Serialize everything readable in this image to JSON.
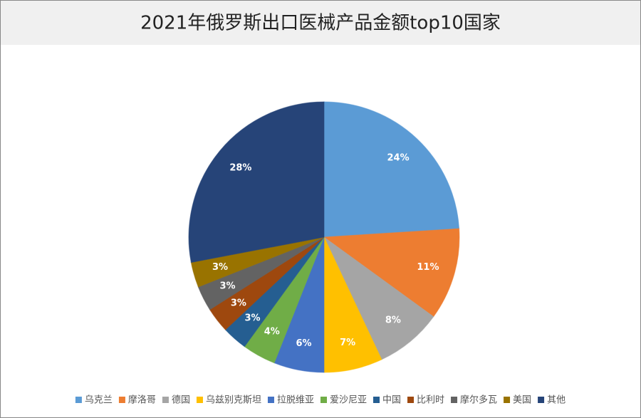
{
  "chart_data": {
    "type": "pie",
    "title": "2021年俄罗斯出口医械产品金额top10国家",
    "categories": [
      "乌克兰",
      "摩洛哥",
      "德国",
      "乌兹别克斯坦",
      "拉脱维亚",
      "爱沙尼亚",
      "中国",
      "比利时",
      "摩尔多瓦",
      "美国",
      "其他"
    ],
    "values": [
      24,
      11,
      8,
      7,
      6,
      4,
      3,
      3,
      3,
      3,
      28
    ],
    "value_labels": [
      "24%",
      "11%",
      "8%",
      "7%",
      "6%",
      "4%",
      "3%",
      "3%",
      "3%",
      "3%",
      "28%"
    ],
    "colors": [
      "#5b9bd5",
      "#ed7d31",
      "#a5a5a5",
      "#ffc000",
      "#4472c4",
      "#70ad47",
      "#255e91",
      "#9e480e",
      "#636363",
      "#997300",
      "#264478"
    ],
    "legend": "bottom"
  }
}
